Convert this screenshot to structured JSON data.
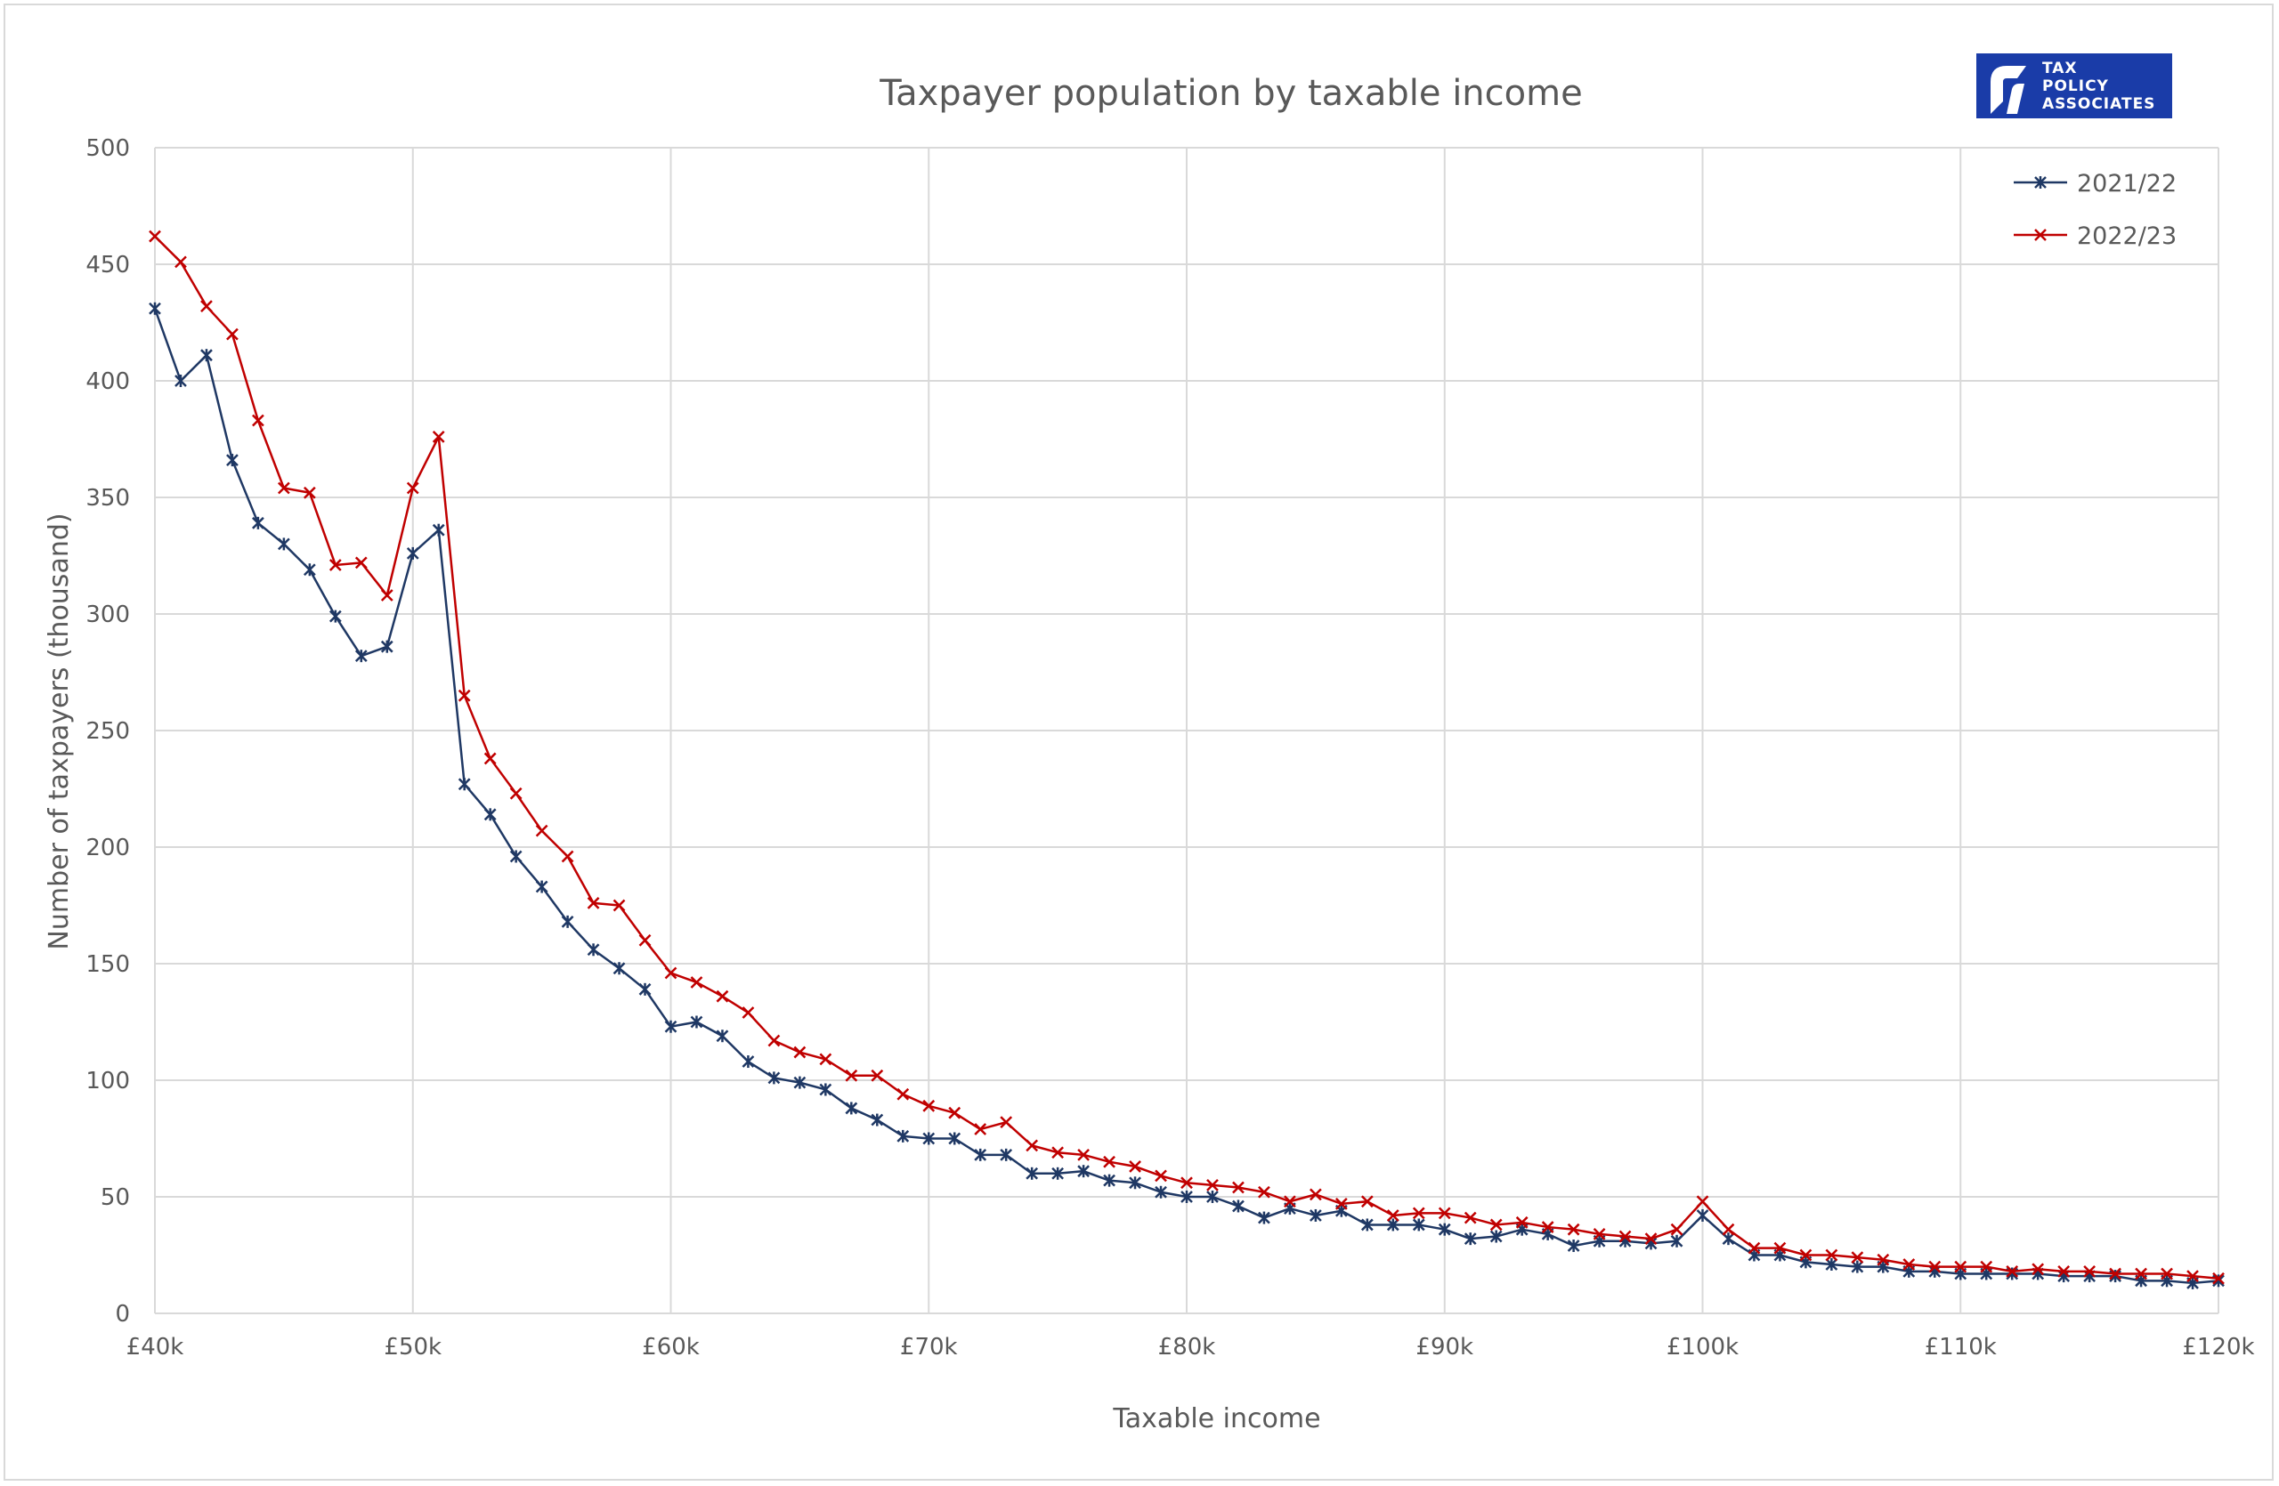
{
  "chart_data": {
    "type": "line",
    "title": "Taxpayer population by taxable income",
    "xlabel": "Taxable income",
    "ylabel": "Number of taxpayers (thousand)",
    "xlim": [
      40,
      120
    ],
    "ylim": [
      0,
      500
    ],
    "x_ticks": [
      40,
      50,
      60,
      70,
      80,
      90,
      100,
      110,
      120
    ],
    "x_tick_labels": [
      "£40k",
      "£50k",
      "£60k",
      "£70k",
      "£80k",
      "£90k",
      "£100k",
      "£110k",
      "£120k"
    ],
    "y_ticks": [
      0,
      50,
      100,
      150,
      200,
      250,
      300,
      350,
      400,
      450,
      500
    ],
    "grid": true,
    "legend_position": "top-right",
    "x": [
      40,
      41,
      42,
      43,
      44,
      45,
      46,
      47,
      48,
      49,
      50,
      51,
      52,
      53,
      54,
      55,
      56,
      57,
      58,
      59,
      60,
      61,
      62,
      63,
      64,
      65,
      66,
      67,
      68,
      69,
      70,
      71,
      72,
      73,
      74,
      75,
      76,
      77,
      78,
      79,
      80,
      81,
      82,
      83,
      84,
      85,
      86,
      87,
      88,
      89,
      90,
      91,
      92,
      93,
      94,
      95,
      96,
      97,
      98,
      99,
      100,
      101,
      102,
      103,
      104,
      105,
      106,
      107,
      108,
      109,
      110,
      111,
      112,
      113,
      114,
      115,
      116,
      117,
      118,
      119,
      120
    ],
    "series": [
      {
        "name": "2021/22",
        "color": "#1f3864",
        "marker": "asterisk",
        "values": [
          431,
          400,
          411,
          366,
          339,
          330,
          319,
          299,
          282,
          286,
          326,
          336,
          227,
          214,
          196,
          183,
          168,
          156,
          148,
          139,
          123,
          125,
          119,
          108,
          101,
          99,
          96,
          88,
          83,
          76,
          75,
          75,
          68,
          68,
          60,
          60,
          61,
          57,
          56,
          52,
          50,
          50,
          46,
          41,
          45,
          42,
          44,
          38,
          38,
          38,
          36,
          32,
          33,
          36,
          34,
          29,
          31,
          31,
          30,
          31,
          42,
          32,
          25,
          25,
          22,
          21,
          20,
          20,
          18,
          18,
          17,
          17,
          17,
          17,
          16,
          16,
          16,
          14,
          14,
          13,
          14
        ]
      },
      {
        "name": "2022/23",
        "color": "#c00000",
        "marker": "cross",
        "values": [
          462,
          451,
          432,
          420,
          383,
          354,
          352,
          321,
          322,
          308,
          354,
          376,
          265,
          238,
          223,
          207,
          196,
          176,
          175,
          160,
          146,
          142,
          136,
          129,
          117,
          112,
          109,
          102,
          102,
          94,
          89,
          86,
          79,
          82,
          72,
          69,
          68,
          65,
          63,
          59,
          56,
          55,
          54,
          52,
          48,
          51,
          47,
          48,
          42,
          43,
          43,
          41,
          38,
          39,
          37,
          36,
          34,
          33,
          32,
          36,
          48,
          36,
          28,
          28,
          25,
          25,
          24,
          23,
          21,
          20,
          20,
          20,
          18,
          19,
          18,
          18,
          17,
          17,
          17,
          16,
          15
        ]
      }
    ]
  },
  "logo": {
    "line1": "TAX",
    "line2": "POLICY",
    "line3": "ASSOCIATES",
    "color": "#1a3ca8"
  }
}
